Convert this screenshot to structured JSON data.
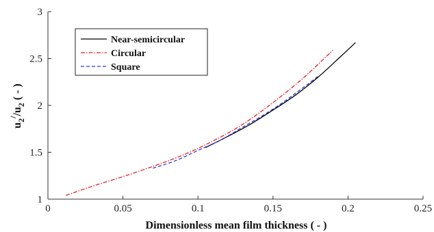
{
  "chart_data": {
    "type": "line",
    "xlabel": "Dimensionless mean film thickness ( - )",
    "ylabel": {
      "base": "u",
      "sub1": "2",
      "sup": "/",
      "mid": "/u",
      "sub2": "2",
      "tail": " ( - )"
    },
    "xlim": [
      0,
      0.25
    ],
    "ylim": [
      1,
      3
    ],
    "x_ticks": [
      "0",
      "0.05",
      "0.1",
      "0.15",
      "0.2",
      "0.25"
    ],
    "y_ticks": [
      "1",
      "1.5",
      "2",
      "2.5",
      "3"
    ],
    "legend_position": "upper-left",
    "grid": false,
    "series": [
      {
        "name": "Near-semicircular",
        "color": "#000000",
        "dash": "solid",
        "x": [
          0.105,
          0.12,
          0.135,
          0.15,
          0.165,
          0.18,
          0.195,
          0.205
        ],
        "y": [
          1.55,
          1.67,
          1.8,
          1.95,
          2.11,
          2.3,
          2.52,
          2.67
        ]
      },
      {
        "name": "Circular",
        "color": "#e8202a",
        "dash": "dashdot",
        "x": [
          0.012,
          0.03,
          0.05,
          0.07,
          0.09,
          0.11,
          0.13,
          0.15,
          0.17,
          0.19
        ],
        "y": [
          1.04,
          1.14,
          1.24,
          1.35,
          1.47,
          1.62,
          1.8,
          2.03,
          2.29,
          2.59
        ]
      },
      {
        "name": "Square",
        "color": "#2b3bd6",
        "dash": "dashed",
        "x": [
          0.07,
          0.085,
          0.1,
          0.115,
          0.13,
          0.145,
          0.16,
          0.18
        ],
        "y": [
          1.33,
          1.41,
          1.52,
          1.63,
          1.77,
          1.91,
          2.07,
          2.31
        ]
      }
    ]
  }
}
